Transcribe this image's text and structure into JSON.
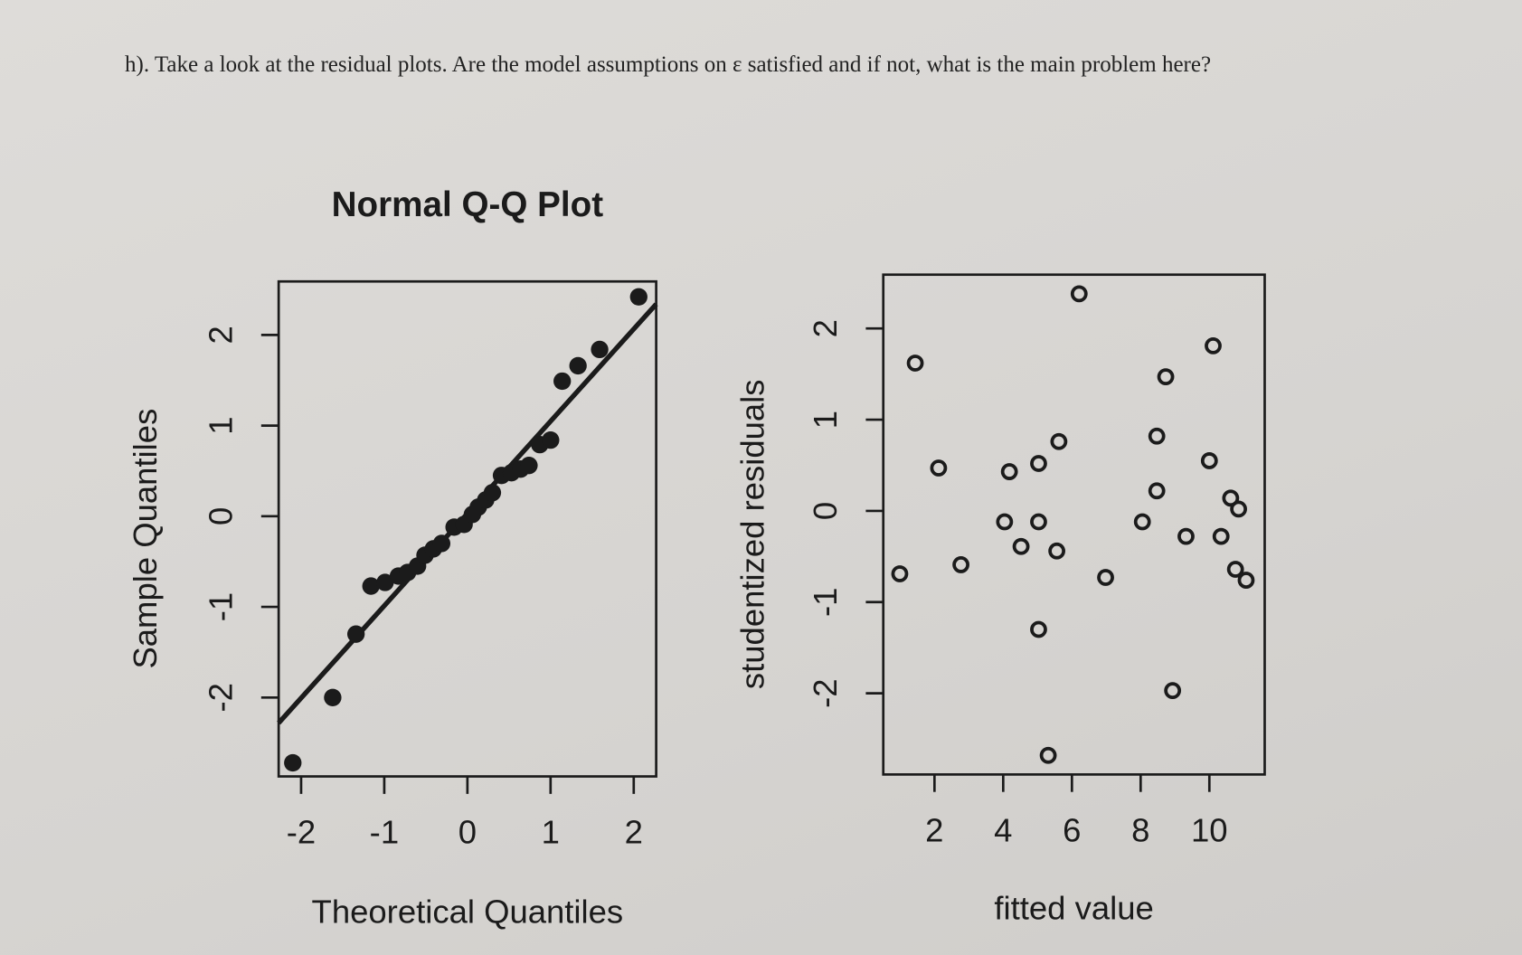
{
  "question": "h). Take a look at the residual plots. Are the model assumptions on ε satisfied and if not, what is the main problem here?",
  "chart_data": [
    {
      "type": "scatter",
      "title": "Normal Q-Q Plot",
      "x_label": "Theoretical Quantiles",
      "y_label": "Sample Quantiles",
      "marker_fill": true,
      "color": "#1b1b1b",
      "x": [
        -2.1,
        -1.62,
        -1.34,
        -1.16,
        -0.99,
        -0.83,
        -0.72,
        -0.6,
        -0.51,
        -0.41,
        -0.31,
        -0.16,
        -0.04,
        0.06,
        0.13,
        0.22,
        0.3,
        0.41,
        0.53,
        0.64,
        0.74,
        0.87,
        1.0,
        1.14,
        1.33,
        1.59,
        2.06
      ],
      "values": [
        -2.72,
        -2.0,
        -1.3,
        -0.77,
        -0.73,
        -0.66,
        -0.62,
        -0.55,
        -0.43,
        -0.36,
        -0.3,
        -0.12,
        -0.09,
        0.02,
        0.1,
        0.18,
        0.26,
        0.45,
        0.48,
        0.52,
        0.56,
        0.79,
        0.84,
        1.49,
        1.66,
        1.84,
        2.42
      ],
      "qq_line": {
        "x": [
          -2.27,
          2.27
        ],
        "y": [
          -2.28,
          2.34
        ]
      },
      "xlim": [
        -2.27,
        2.27
      ],
      "ylim": [
        -2.87,
        2.59
      ],
      "xticks": [
        -2,
        -1,
        0,
        1,
        2
      ],
      "yticks": [
        -2,
        -1,
        0,
        1,
        2
      ]
    },
    {
      "type": "scatter",
      "x_label": "fitted value",
      "y_label": "studentized residuals",
      "marker_fill": false,
      "color": "#1b1b1b",
      "x": [
        0.99,
        1.44,
        2.12,
        2.77,
        4.18,
        4.04,
        4.52,
        5.03,
        5.03,
        5.56,
        5.62,
        5.03,
        5.31,
        6.21,
        6.98,
        8.05,
        8.47,
        8.47,
        8.73,
        8.93,
        9.32,
        10.11,
        10.0,
        10.34,
        10.62,
        10.85,
        10.76,
        11.07
      ],
      "values": [
        -0.69,
        1.62,
        0.47,
        -0.59,
        0.43,
        -0.12,
        -0.39,
        0.52,
        -0.12,
        -0.44,
        0.76,
        -1.3,
        -2.68,
        2.38,
        -0.73,
        -0.12,
        0.22,
        0.82,
        1.47,
        -1.97,
        -0.28,
        1.81,
        0.55,
        -0.28,
        0.14,
        0.02,
        -0.64,
        -0.76
      ],
      "xlim": [
        0.51,
        11.61
      ],
      "ylim": [
        -2.89,
        2.59
      ],
      "xticks": [
        2,
        4,
        6,
        8,
        10
      ],
      "yticks": [
        -2,
        -1,
        0,
        1,
        2
      ]
    }
  ]
}
